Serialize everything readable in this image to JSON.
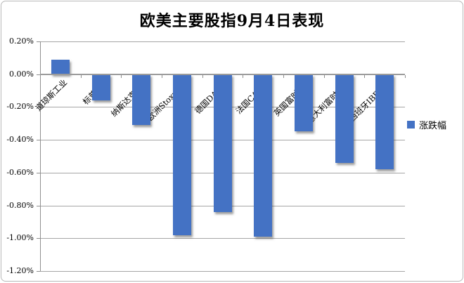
{
  "chart_data": {
    "type": "bar",
    "title": "欧美主要股指9月4日表现",
    "categories": [
      "道琼斯工业",
      "标普500",
      "纳斯达克综合",
      "欧洲Stoxx600",
      "德国DAX30",
      "法国CAC40",
      "英国富时100",
      "意大利富时MIB",
      "西班牙IBEX35"
    ],
    "series": [
      {
        "name": "涨跌幅",
        "values": [
          0.09,
          -0.16,
          -0.31,
          -0.98,
          -0.84,
          -0.99,
          -0.35,
          -0.54,
          -0.58
        ]
      }
    ],
    "value_unit": "percent",
    "xlabel": "",
    "ylabel": "",
    "ylim": [
      -1.2,
      0.2
    ],
    "y_ticks": [
      {
        "value": 0.2,
        "label": "0.20%"
      },
      {
        "value": 0.0,
        "label": "0.00%"
      },
      {
        "value": -0.2,
        "label": "-0.20%"
      },
      {
        "value": -0.4,
        "label": "-0.40%"
      },
      {
        "value": -0.6,
        "label": "-0.60%"
      },
      {
        "value": -0.8,
        "label": "-0.80%"
      },
      {
        "value": -1.0,
        "label": "-1.00%"
      },
      {
        "value": -1.2,
        "label": "-1.20%"
      }
    ],
    "grid": true,
    "legend_position": "right",
    "bar_color": "#4472C4",
    "gridline_color": "#a6a6a6",
    "axis_color": "#9b9b9b"
  }
}
